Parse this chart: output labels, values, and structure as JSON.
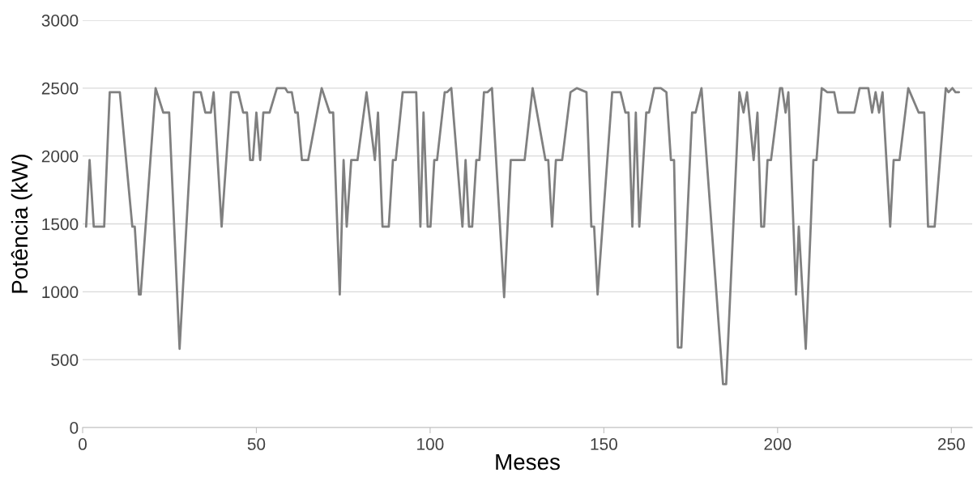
{
  "chart_data": {
    "type": "line",
    "xlabel": "Meses",
    "ylabel": "Potência (kW)",
    "xlim": [
      0,
      256
    ],
    "xticks": [
      0,
      50,
      100,
      150,
      200,
      250
    ],
    "ylim": [
      0,
      3000
    ],
    "yticks": [
      0,
      500,
      1000,
      1500,
      2000,
      2500,
      3000
    ],
    "grid": "y",
    "series": [
      {
        "color": "#808080",
        "x": [
          1,
          2,
          3.2,
          6.2,
          7.8,
          10.7,
          14.3,
          15,
          16.2,
          16.7,
          21,
          23.2,
          24.9,
          27.9,
          32,
          34,
          35.3,
          36.9,
          37.7,
          40,
          42.7,
          44.8,
          46.2,
          47.3,
          48.2,
          49,
          50,
          51.1,
          52,
          53.8,
          55.9,
          58.3,
          59,
          60.2,
          61.2,
          61.9,
          63.1,
          64.9,
          68.8,
          71.1,
          72.1,
          74,
          75.1,
          76,
          77.3,
          79.1,
          81.7,
          84.1,
          85,
          86.3,
          88.1,
          89.3,
          90.1,
          92.1,
          96,
          97.2,
          98.1,
          99.3,
          100.1,
          101.2,
          102,
          104.2,
          104.9,
          106.1,
          109.3,
          110.2,
          111.2,
          112.1,
          113.3,
          114.2,
          115.5,
          116.5,
          117.8,
          121.3,
          123.2,
          127.2,
          129.5,
          133.2,
          134,
          135.1,
          136.2,
          138,
          140.4,
          142.2,
          145,
          146.4,
          147.2,
          148.2,
          152.4,
          154.8,
          156.2,
          157.1,
          158.2,
          159.2,
          160.2,
          162.2,
          163,
          164.5,
          166.4,
          168,
          169.3,
          170.2,
          171.3,
          172.3,
          175.4,
          176.4,
          178.1,
          184.3,
          185.2,
          189,
          190.2,
          191.2,
          193.1,
          194.2,
          195.3,
          196.1,
          197.1,
          198.1,
          200.7,
          201.3,
          202.3,
          203.1,
          205.3,
          206.1,
          208.1,
          210.3,
          211.2,
          212.7,
          214.3,
          216.3,
          217.4,
          222.1,
          223.6,
          226.1,
          227.2,
          228.2,
          229.2,
          230.2,
          232.4,
          233.4,
          235.1,
          237.6,
          240.6,
          242.2,
          243.3,
          245.2,
          248.4,
          249.2,
          250.3,
          251.2,
          252.2
        ],
        "values": [
          1480,
          1970,
          1480,
          1480,
          2470,
          2470,
          1480,
          1480,
          980,
          980,
          2500,
          2320,
          2320,
          580,
          2470,
          2470,
          2320,
          2320,
          2470,
          1480,
          2470,
          2470,
          2320,
          2320,
          1970,
          1970,
          2320,
          1970,
          2320,
          2320,
          2500,
          2500,
          2470,
          2470,
          2320,
          2320,
          1970,
          1970,
          2500,
          2320,
          2320,
          980,
          1970,
          1480,
          1970,
          1970,
          2470,
          1970,
          2320,
          1480,
          1480,
          1970,
          1970,
          2470,
          2470,
          1480,
          2320,
          1480,
          1480,
          1970,
          1970,
          2470,
          2470,
          2500,
          1480,
          1970,
          1480,
          1480,
          1970,
          1970,
          2470,
          2470,
          2500,
          960,
          1970,
          1970,
          2500,
          1970,
          1970,
          1480,
          1970,
          1970,
          2470,
          2500,
          2470,
          1480,
          1480,
          980,
          2470,
          2470,
          2320,
          2320,
          1480,
          2320,
          1480,
          2320,
          2320,
          2500,
          2500,
          2470,
          1970,
          1970,
          590,
          590,
          2320,
          2320,
          2500,
          320,
          320,
          2470,
          2320,
          2470,
          1970,
          2320,
          1480,
          1480,
          1970,
          1970,
          2500,
          2500,
          2320,
          2470,
          980,
          1480,
          580,
          1970,
          1970,
          2500,
          2470,
          2470,
          2320,
          2320,
          2500,
          2500,
          2320,
          2470,
          2320,
          2470,
          1480,
          1970,
          1970,
          2500,
          2320,
          2320,
          1480,
          1480,
          2500,
          2470,
          2500,
          2470,
          2470
        ]
      }
    ]
  }
}
